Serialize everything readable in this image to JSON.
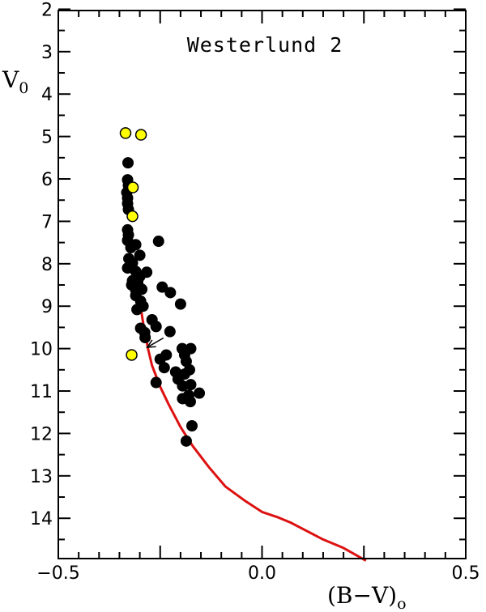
{
  "chart_data": {
    "type": "scatter",
    "title": "Westerlund 2",
    "xlabel": "(B−V)",
    "xlabel_subscript": "o",
    "ylabel": "V",
    "ylabel_subscript": "0",
    "xlim": [
      -0.5,
      0.5
    ],
    "ylim": [
      15,
      2
    ],
    "y_inverted": true,
    "x_ticks": [
      -0.5,
      0.0,
      0.5
    ],
    "x_tick_labels": [
      "−0.5",
      "0.0",
      "0.5"
    ],
    "y_ticks": [
      2,
      3,
      4,
      5,
      6,
      7,
      8,
      9,
      10,
      11,
      12,
      13,
      14
    ],
    "y_tick_labels": [
      "2",
      "3",
      "4",
      "5",
      "6",
      "7",
      "8",
      "9",
      "10",
      "11",
      "12",
      "13",
      "14"
    ],
    "grid": false,
    "colors": {
      "black_points": "#000000",
      "yellow_points": "#ffff00",
      "isochrone": "#dd1111"
    },
    "series": [
      {
        "kind": "points",
        "color": "black",
        "points": [
          [
            -0.329,
            5.62
          ],
          [
            -0.33,
            6.02
          ],
          [
            -0.328,
            6.15
          ],
          [
            -0.332,
            6.32
          ],
          [
            -0.33,
            6.45
          ],
          [
            -0.33,
            6.58
          ],
          [
            -0.328,
            6.72
          ],
          [
            -0.33,
            7.2
          ],
          [
            -0.328,
            7.32
          ],
          [
            -0.33,
            7.45
          ],
          [
            -0.31,
            7.55
          ],
          [
            -0.322,
            7.62
          ],
          [
            -0.3,
            7.8
          ],
          [
            -0.254,
            7.47
          ],
          [
            -0.327,
            7.88
          ],
          [
            -0.318,
            7.98
          ],
          [
            -0.33,
            8.1
          ],
          [
            -0.31,
            8.18
          ],
          [
            -0.283,
            8.2
          ],
          [
            -0.3,
            8.3
          ],
          [
            -0.318,
            8.4
          ],
          [
            -0.305,
            8.45
          ],
          [
            -0.32,
            8.5
          ],
          [
            -0.295,
            8.6
          ],
          [
            -0.31,
            8.62
          ],
          [
            -0.245,
            8.55
          ],
          [
            -0.225,
            8.68
          ],
          [
            -0.31,
            8.75
          ],
          [
            -0.298,
            8.88
          ],
          [
            -0.292,
            9.0
          ],
          [
            -0.307,
            9.08
          ],
          [
            -0.27,
            9.32
          ],
          [
            -0.26,
            9.48
          ],
          [
            -0.298,
            9.52
          ],
          [
            -0.288,
            9.62
          ],
          [
            -0.287,
            9.74
          ],
          [
            -0.226,
            9.6
          ],
          [
            -0.2,
            8.95
          ],
          [
            -0.235,
            10.15
          ],
          [
            -0.196,
            10.0
          ],
          [
            -0.175,
            10.0
          ],
          [
            -0.25,
            10.25
          ],
          [
            -0.19,
            10.15
          ],
          [
            -0.186,
            10.3
          ],
          [
            -0.24,
            10.45
          ],
          [
            -0.178,
            10.5
          ],
          [
            -0.212,
            10.55
          ],
          [
            -0.19,
            10.6
          ],
          [
            -0.206,
            10.72
          ],
          [
            -0.195,
            10.88
          ],
          [
            -0.175,
            10.85
          ],
          [
            -0.26,
            10.8
          ],
          [
            -0.154,
            11.05
          ],
          [
            -0.18,
            11.1
          ],
          [
            -0.195,
            11.18
          ],
          [
            -0.176,
            11.25
          ],
          [
            -0.172,
            11.82
          ],
          [
            -0.186,
            12.18
          ]
        ]
      },
      {
        "kind": "points",
        "color": "yellow",
        "points": [
          [
            -0.335,
            4.92
          ],
          [
            -0.297,
            4.96
          ],
          [
            -0.317,
            6.2
          ],
          [
            -0.318,
            6.88
          ],
          [
            -0.32,
            10.15
          ]
        ]
      },
      {
        "kind": "line",
        "color": "red",
        "points": [
          [
            -0.3,
            8.9
          ],
          [
            -0.29,
            9.5
          ],
          [
            -0.28,
            10.0
          ],
          [
            -0.27,
            10.4
          ],
          [
            -0.25,
            10.9
          ],
          [
            -0.23,
            11.3
          ],
          [
            -0.2,
            11.85
          ],
          [
            -0.17,
            12.3
          ],
          [
            -0.13,
            12.8
          ],
          [
            -0.09,
            13.25
          ],
          [
            -0.04,
            13.6
          ],
          [
            0.0,
            13.85
          ],
          [
            0.04,
            13.98
          ],
          [
            0.07,
            14.1
          ],
          [
            0.11,
            14.3
          ],
          [
            0.15,
            14.5
          ],
          [
            0.2,
            14.7
          ],
          [
            0.255,
            15.0
          ]
        ]
      }
    ],
    "annotations": [
      {
        "type": "arrow",
        "from": [
          -0.242,
          9.75
        ],
        "to": [
          -0.282,
          9.97
        ]
      }
    ]
  }
}
